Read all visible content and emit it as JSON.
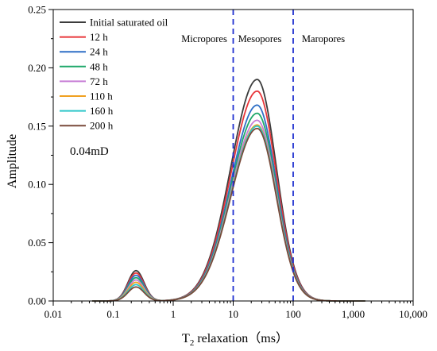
{
  "chart_data": {
    "type": "line",
    "xlabel": "T",
    "xlabel_sub": "2",
    "xlabel_rest": " relaxation（ms）",
    "ylabel": "Amplitude",
    "x_scale": "log",
    "xlim": [
      0.01,
      10000
    ],
    "ylim": [
      0,
      0.25
    ],
    "x_ticks": [
      0.01,
      0.1,
      1,
      10,
      100,
      1000,
      10000
    ],
    "x_tick_labels": [
      "0.01",
      "0.1",
      "1",
      "10",
      "100",
      "1,000",
      "10,000"
    ],
    "y_ticks": [
      0,
      0.05,
      0.1,
      0.15,
      0.2,
      0.25
    ],
    "y_tick_labels": [
      "0.00",
      "0.05",
      "0.10",
      "0.15",
      "0.20",
      "0.25"
    ],
    "grid": false,
    "legend_position": "top-left",
    "annotation": "0.04mD",
    "regions": [
      {
        "label": "Micropores"
      },
      {
        "label": "Mesopores"
      },
      {
        "label": "Maropores"
      }
    ],
    "boundaries": [
      10,
      100
    ],
    "boundary_color": "#1f2fd0",
    "series": [
      {
        "name": "Initial saturated oil",
        "color": "#3c3c3c",
        "small_peak": 0.026,
        "main_peak": 0.19
      },
      {
        "name": "12 h",
        "color": "#e8363a",
        "small_peak": 0.024,
        "main_peak": 0.18
      },
      {
        "name": "24 h",
        "color": "#2f6fc6",
        "small_peak": 0.022,
        "main_peak": 0.168
      },
      {
        "name": "48 h",
        "color": "#1fa86a",
        "small_peak": 0.02,
        "main_peak": 0.161
      },
      {
        "name": "72 h",
        "color": "#c77fd6",
        "small_peak": 0.018,
        "main_peak": 0.155
      },
      {
        "name": "110 h",
        "color": "#f0a020",
        "small_peak": 0.016,
        "main_peak": 0.151
      },
      {
        "name": "160 h",
        "color": "#2fc6c9",
        "small_peak": 0.014,
        "main_peak": 0.15
      },
      {
        "name": "200 h",
        "color": "#7a4a3a",
        "small_peak": 0.012,
        "main_peak": 0.148
      }
    ]
  }
}
